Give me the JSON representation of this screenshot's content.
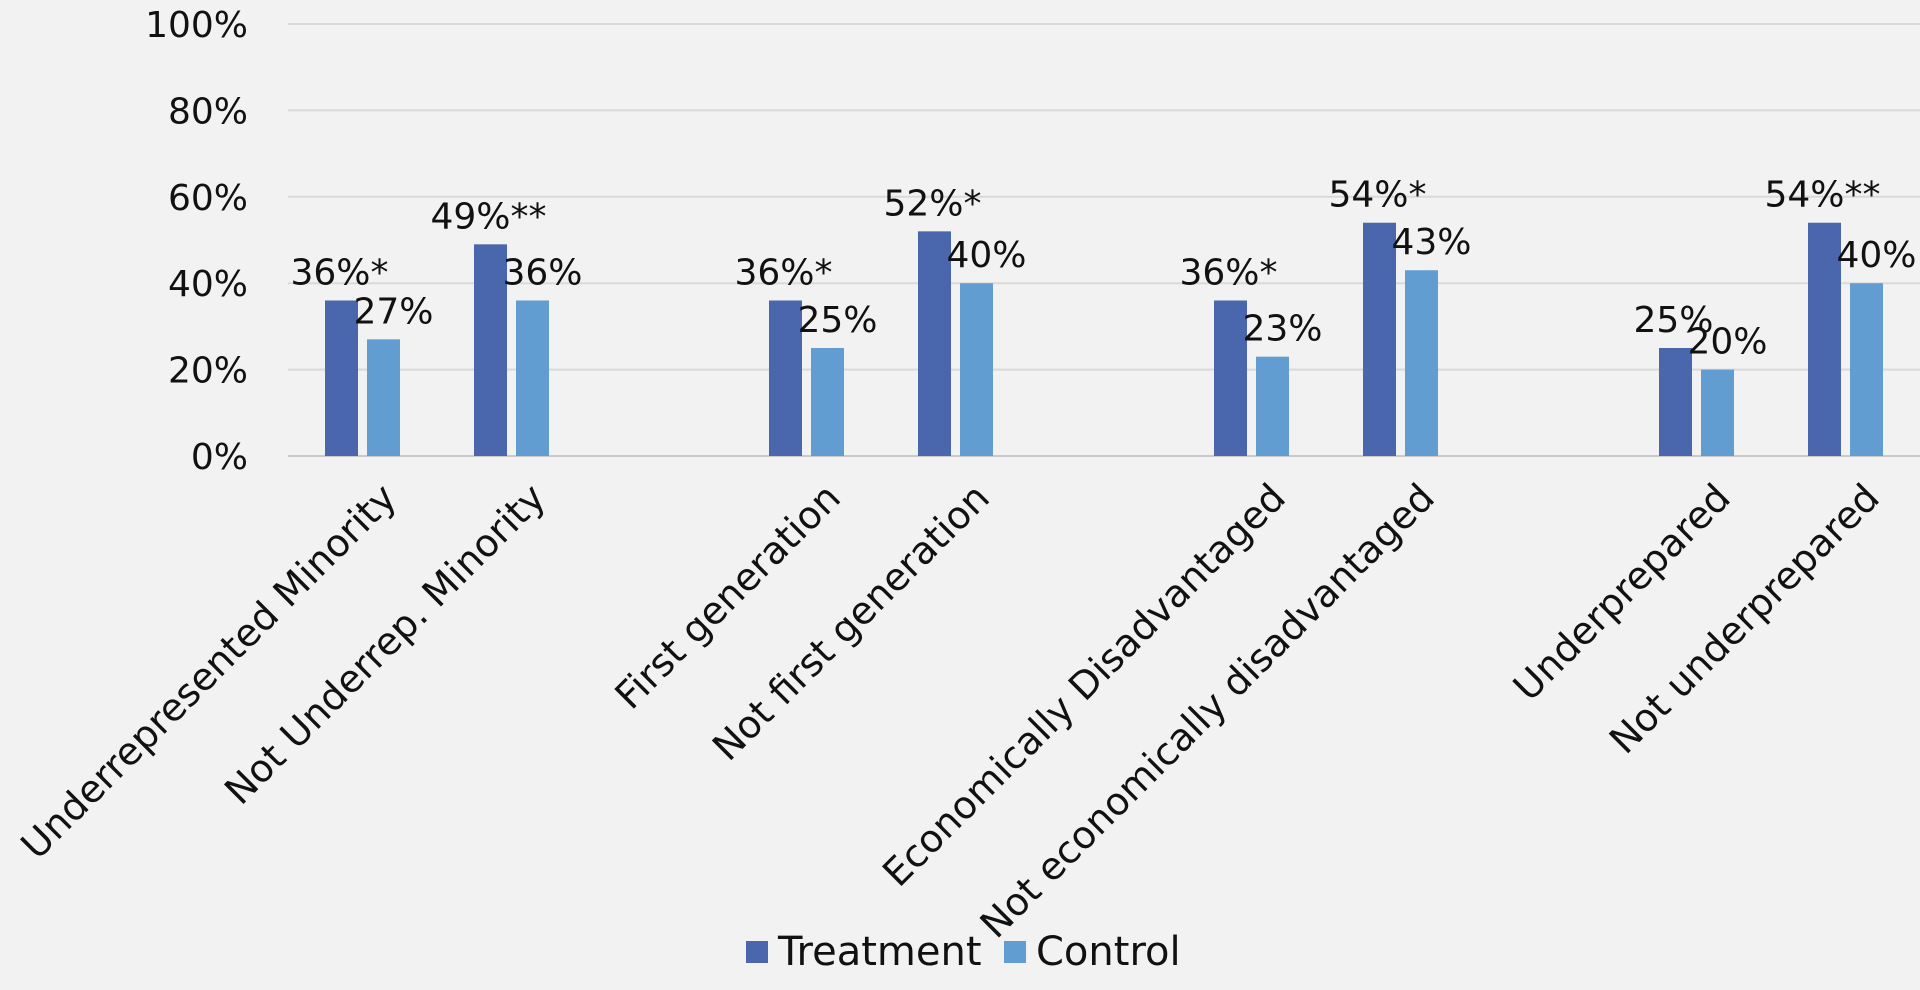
{
  "chart_data": {
    "type": "bar",
    "categories": [
      "Underrepresented Minority",
      "Not Underrep. Minority",
      "First generation",
      "Not first generation",
      "Economically Disadvantaged",
      "Not economically disadvantaged",
      "Underprepared",
      "Not underprepared"
    ],
    "series": [
      {
        "name": "Treatment",
        "color": "#4a66ac",
        "values": [
          36,
          49,
          36,
          52,
          36,
          54,
          25,
          54
        ],
        "labels": [
          "36%*",
          "49%**",
          "36%*",
          "52%*",
          "36%*",
          "54%*",
          "25%",
          "54%**"
        ]
      },
      {
        "name": "Control",
        "color": "#629dd1",
        "values": [
          27,
          36,
          25,
          40,
          23,
          43,
          20,
          40
        ],
        "labels": [
          "27%",
          "36%",
          "25%",
          "40%",
          "23%",
          "43%",
          "20%",
          "40%"
        ]
      }
    ],
    "yticks": [
      "0%",
      "20%",
      "40%",
      "60%",
      "80%",
      "100%"
    ],
    "ylim": [
      0,
      100
    ],
    "grid": true,
    "legend_position": "bottom"
  }
}
